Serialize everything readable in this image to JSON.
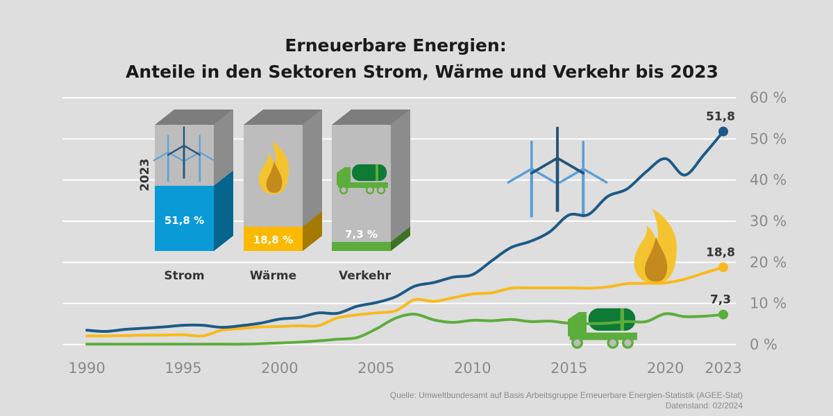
{
  "chart_data": {
    "type": "line",
    "title": "Erneuerbare Energien:",
    "subtitle": "Anteile in den Sektoren Strom, Wärme und Verkehr bis 2023",
    "xlabel": "",
    "ylabel": "",
    "xlim": [
      1990,
      2023
    ],
    "ylim": [
      0,
      60
    ],
    "grid": true,
    "x_ticks": [
      "1990",
      "1995",
      "2000",
      "2005",
      "2010",
      "2015",
      "2020",
      "2023"
    ],
    "y_ticks": [
      "0 %",
      "10 %",
      "20 %",
      "30 %",
      "40 %",
      "50 %",
      "60 %"
    ],
    "x": [
      1990,
      1991,
      1992,
      1993,
      1994,
      1995,
      1996,
      1997,
      1998,
      1999,
      2000,
      2001,
      2002,
      2003,
      2004,
      2005,
      2006,
      2007,
      2008,
      2009,
      2010,
      2011,
      2012,
      2013,
      2014,
      2015,
      2016,
      2017,
      2018,
      2019,
      2020,
      2021,
      2022,
      2023
    ],
    "series": [
      {
        "name": "Strom",
        "color": "#1d5a86",
        "end_label": "51,8",
        "values": [
          3.5,
          3.2,
          3.7,
          4.0,
          4.3,
          4.7,
          4.7,
          4.2,
          4.6,
          5.2,
          6.2,
          6.6,
          7.7,
          7.6,
          9.3,
          10.2,
          11.6,
          14.2,
          15.1,
          16.4,
          17.0,
          20.4,
          23.6,
          25.1,
          27.4,
          31.5,
          31.6,
          36.0,
          37.8,
          42.0,
          45.2,
          41.2,
          46.2,
          51.8
        ]
      },
      {
        "name": "Wärme",
        "color": "#f9b91c",
        "end_label": "18,8",
        "values": [
          2.1,
          2.1,
          2.2,
          2.3,
          2.3,
          2.4,
          2.1,
          3.5,
          3.9,
          4.3,
          4.4,
          4.6,
          4.6,
          6.5,
          7.2,
          7.7,
          8.2,
          10.9,
          10.5,
          11.4,
          12.3,
          12.6,
          13.7,
          13.8,
          13.8,
          13.8,
          13.7,
          14.0,
          14.8,
          14.9,
          15.0,
          15.9,
          17.4,
          18.8
        ]
      },
      {
        "name": "Verkehr",
        "color": "#5cad3b",
        "end_label": "7,3",
        "values": [
          0.1,
          0.1,
          0.1,
          0.1,
          0.1,
          0.1,
          0.1,
          0.1,
          0.1,
          0.2,
          0.4,
          0.6,
          0.9,
          1.3,
          1.7,
          3.8,
          6.4,
          7.4,
          6.0,
          5.4,
          5.9,
          5.8,
          6.1,
          5.6,
          5.7,
          5.2,
          5.1,
          5.2,
          5.6,
          5.6,
          7.5,
          6.8,
          6.9,
          7.3
        ]
      }
    ],
    "inset_bars": {
      "year_label": "2023",
      "bars": [
        {
          "name": "Strom",
          "value": 51.8,
          "label": "51,8 %",
          "color": "#0a9bd6",
          "side": "#05658f",
          "icon": "wind-turbine-icon"
        },
        {
          "name": "Wärme",
          "value": 18.8,
          "label": "18,8 %",
          "color": "#fbb900",
          "side": "#a57a00",
          "icon": "flame-icon"
        },
        {
          "name": "Verkehr",
          "value": 7.3,
          "label": "7,3 %",
          "color": "#5cad3b",
          "side": "#3b7324",
          "icon": "tanker-truck-icon"
        }
      ]
    }
  },
  "source": {
    "line1": "Quelle: Umweltbundesamt auf Basis Arbeitsgruppe Erneuerbare Energien-Statistik (AGEE-Stat)",
    "line2": "Datenstand: 02/2024"
  }
}
